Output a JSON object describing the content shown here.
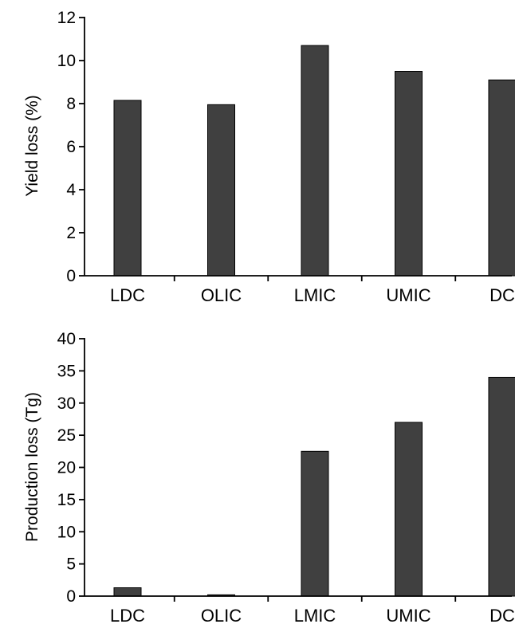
{
  "chart_data": [
    {
      "type": "bar",
      "categories": [
        "LDC",
        "OLIC",
        "LMIC",
        "UMIC",
        "DC"
      ],
      "values": [
        8.15,
        7.95,
        10.7,
        9.5,
        9.1
      ],
      "xlabel": "",
      "ylabel": "Yield loss (%)",
      "ylim": [
        0,
        12
      ],
      "yticks": [
        0,
        2,
        4,
        6,
        8,
        10,
        12
      ],
      "grid": false,
      "bar_color": "#404040"
    },
    {
      "type": "bar",
      "categories": [
        "LDC",
        "OLIC",
        "LMIC",
        "UMIC",
        "DC"
      ],
      "values": [
        1.3,
        0.2,
        22.5,
        27.0,
        34.0
      ],
      "xlabel": "",
      "ylabel": "Production loss (Tg)",
      "ylim": [
        0,
        40
      ],
      "yticks": [
        0,
        5,
        10,
        15,
        20,
        25,
        30,
        35,
        40
      ],
      "grid": false,
      "bar_color": "#404040"
    }
  ]
}
